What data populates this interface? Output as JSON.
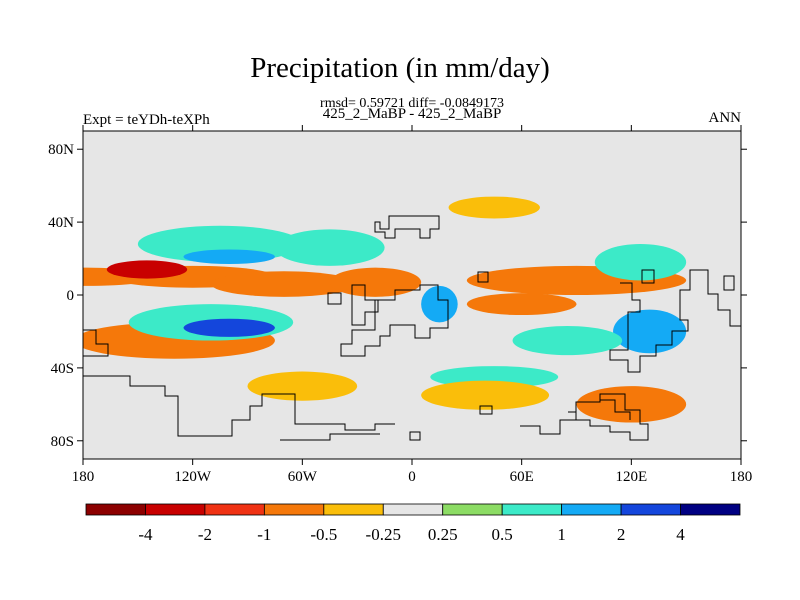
{
  "chart_data": {
    "type": "heatmap",
    "title": "Precipitation (in mm/day)",
    "stats_text": "rmsd= 0.59721 diff= -0.0849173",
    "cases_text": "425_2_MaBP - 425_2_MaBP",
    "left_label": "Expt = teYDh-teXPh",
    "right_label": "ANN",
    "x_axis": {
      "range": [
        -180,
        180
      ],
      "ticks": [
        {
          "value": -180,
          "label": "180"
        },
        {
          "value": -120,
          "label": "120W"
        },
        {
          "value": -60,
          "label": "60W"
        },
        {
          "value": 0,
          "label": "0"
        },
        {
          "value": 60,
          "label": "60E"
        },
        {
          "value": 120,
          "label": "120E"
        },
        {
          "value": 180,
          "label": "180"
        }
      ]
    },
    "y_axis": {
      "range": [
        -90,
        90
      ],
      "ticks": [
        {
          "value": 80,
          "label": "80N"
        },
        {
          "value": 40,
          "label": "40N"
        },
        {
          "value": 0,
          "label": "0"
        },
        {
          "value": -40,
          "label": "40S"
        },
        {
          "value": -80,
          "label": "80S"
        }
      ]
    },
    "colorbar": {
      "labels": [
        "-4",
        "-2",
        "-1",
        "-0.5",
        "-0.25",
        "0.25",
        "0.5",
        "1",
        "2",
        "4"
      ],
      "colors": [
        "#8c0000",
        "#c80000",
        "#f03214",
        "#f5780a",
        "#fabe0a",
        "#e6e6e6",
        "#8cdc64",
        "#3ceac8",
        "#14aaf5",
        "#1446dc",
        "#000082"
      ]
    },
    "regions": [
      {
        "lon": -178,
        "lat": 10,
        "rlon": 40,
        "rlat": 5,
        "level": -1
      },
      {
        "lon": -120,
        "lat": 10,
        "rlon": 45,
        "rlat": 6,
        "level": -1
      },
      {
        "lon": -70,
        "lat": 6,
        "rlon": 40,
        "rlat": 7,
        "level": -1
      },
      {
        "lon": -145,
        "lat": 14,
        "rlon": 22,
        "rlat": 5,
        "level": -4
      },
      {
        "lon": -105,
        "lat": 28,
        "rlon": 45,
        "rlat": 10,
        "level": 0.5
      },
      {
        "lon": -100,
        "lat": 21,
        "rlon": 25,
        "rlat": 4,
        "level": 1
      },
      {
        "lon": -45,
        "lat": 26,
        "rlon": 30,
        "rlat": 10,
        "level": 0.5
      },
      {
        "lon": -130,
        "lat": -25,
        "rlon": 55,
        "rlat": 10,
        "level": -1
      },
      {
        "lon": -110,
        "lat": -15,
        "rlon": 45,
        "rlat": 10,
        "level": 0.5
      },
      {
        "lon": -100,
        "lat": -18,
        "rlon": 25,
        "rlat": 5,
        "level": 2
      },
      {
        "lon": -60,
        "lat": -50,
        "rlon": 30,
        "rlat": 8,
        "level": -0.5
      },
      {
        "lon": 90,
        "lat": 8,
        "rlon": 60,
        "rlat": 8,
        "level": -1
      },
      {
        "lon": 60,
        "lat": -5,
        "rlon": 30,
        "rlat": 6,
        "level": -1
      },
      {
        "lon": 125,
        "lat": 18,
        "rlon": 25,
        "rlat": 10,
        "level": 0.5
      },
      {
        "lon": 130,
        "lat": -20,
        "rlon": 20,
        "rlat": 12,
        "level": 1
      },
      {
        "lon": 85,
        "lat": -25,
        "rlon": 30,
        "rlat": 8,
        "level": 0.5
      },
      {
        "lon": 45,
        "lat": -45,
        "rlon": 35,
        "rlat": 6,
        "level": 0.5
      },
      {
        "lon": 120,
        "lat": -60,
        "rlon": 30,
        "rlat": 10,
        "level": -1
      },
      {
        "lon": 40,
        "lat": -55,
        "rlon": 35,
        "rlat": 8,
        "level": -0.5
      },
      {
        "lon": 45,
        "lat": 48,
        "rlon": 25,
        "rlat": 6,
        "level": -0.5
      },
      {
        "lon": -20,
        "lat": 7,
        "rlon": 25,
        "rlat": 8,
        "level": -1
      },
      {
        "lon": 15,
        "lat": -5,
        "rlon": 10,
        "rlat": 10,
        "level": 1
      }
    ]
  }
}
